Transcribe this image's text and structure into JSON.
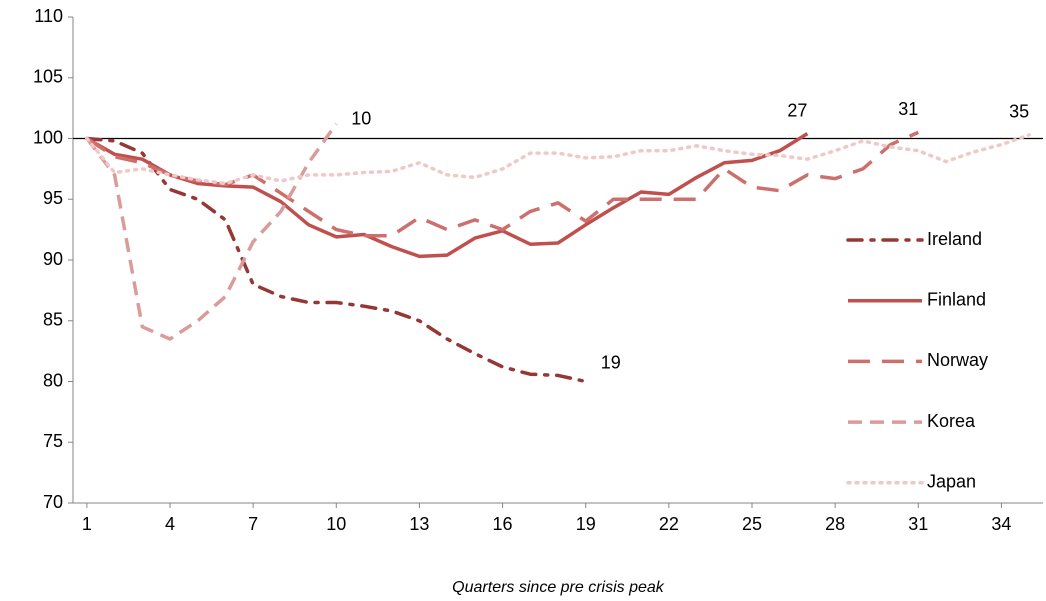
{
  "chart_data": {
    "type": "line",
    "x_label": "Quarters since pre crisis peak",
    "x": [
      1,
      2,
      3,
      4,
      5,
      6,
      7,
      8,
      9,
      10,
      11,
      12,
      13,
      14,
      15,
      16,
      17,
      18,
      19,
      20,
      21,
      22,
      23,
      24,
      25,
      26,
      27,
      28,
      29,
      30,
      31,
      32,
      33,
      34,
      35
    ],
    "xlim": [
      0.5,
      35.5
    ],
    "xticks": [
      1,
      4,
      7,
      10,
      13,
      16,
      19,
      22,
      25,
      28,
      31,
      34
    ],
    "ylim": [
      70,
      110
    ],
    "yticks": [
      70,
      75,
      80,
      85,
      90,
      95,
      100,
      105,
      110
    ],
    "reference_line": 100,
    "grid": false,
    "legend": "right",
    "series": [
      {
        "name": "Ireland",
        "color": "#953735",
        "style": "dashdot",
        "values": [
          100,
          99.8,
          98.8,
          95.8,
          95,
          93.3,
          88,
          87,
          86.5,
          86.5,
          86.2,
          85.8,
          85,
          83.5,
          82.3,
          81.2,
          80.6,
          80.5,
          80,
          null,
          null,
          null,
          null,
          null,
          null,
          null,
          null,
          null,
          null,
          null,
          null,
          null,
          null,
          null,
          null
        ]
      },
      {
        "name": "Finland",
        "color": "#c0504d",
        "style": "solid",
        "values": [
          100,
          98.7,
          98.3,
          97,
          96.3,
          96.1,
          96,
          94.8,
          92.9,
          91.9,
          92.1,
          91.1,
          90.3,
          90.4,
          91.8,
          92.4,
          91.3,
          91.4,
          92.9,
          94.3,
          95.6,
          95.4,
          96.8,
          98,
          98.2,
          99,
          100.4,
          null,
          null,
          null,
          null,
          null,
          null,
          null,
          null
        ]
      },
      {
        "name": "Norway",
        "color": "#cd6f6c",
        "style": "longdash",
        "values": [
          100,
          98.5,
          98,
          97,
          96.5,
          96.2,
          97,
          95.5,
          94,
          92.5,
          92,
          92,
          93.5,
          92.5,
          93.3,
          92.5,
          94,
          94.7,
          93.2,
          95,
          95,
          95,
          95,
          97.5,
          96,
          95.7,
          97,
          96.7,
          97.5,
          99.5,
          100.5,
          null,
          null,
          null,
          null
        ]
      },
      {
        "name": "Korea",
        "color": "#da9c9a",
        "style": "dash",
        "values": [
          100,
          97,
          84.5,
          83.5,
          85,
          87,
          91.5,
          94,
          98,
          101.2,
          null,
          null,
          null,
          null,
          null,
          null,
          null,
          null,
          null,
          null,
          null,
          null,
          null,
          null,
          null,
          null,
          null,
          null,
          null,
          null,
          null,
          null,
          null,
          null,
          null
        ]
      },
      {
        "name": "Japan",
        "color": "#efc9c8",
        "style": "dot",
        "values": [
          100,
          97.2,
          97.5,
          97,
          96.6,
          96.3,
          97,
          96.5,
          97,
          97,
          97.2,
          97.3,
          98,
          97,
          96.8,
          97.5,
          98.8,
          98.8,
          98.4,
          98.5,
          99,
          99,
          99.4,
          99,
          98.7,
          98.6,
          98.3,
          99,
          99.8,
          99.3,
          99,
          98.1,
          98.9,
          99.5,
          100.3
        ]
      }
    ],
    "annotations": [
      {
        "text": "10",
        "x": 10
      },
      {
        "text": "19",
        "x": 19
      },
      {
        "text": "27",
        "x": 27
      },
      {
        "text": "31",
        "x": 31
      },
      {
        "text": "35",
        "x": 35
      }
    ]
  }
}
